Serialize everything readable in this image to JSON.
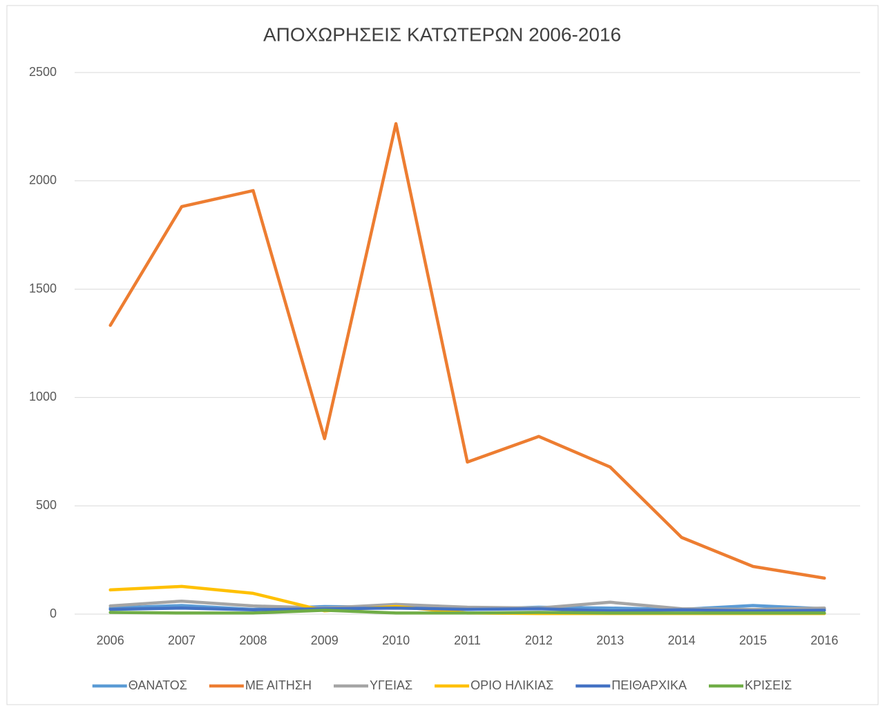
{
  "chart_data": {
    "type": "line",
    "title": "ΑΠΟΧΩΡΗΣΕΙΣ ΚΑΤΩΤΕΡΩΝ 2006-2016",
    "categories": [
      "2006",
      "2007",
      "2008",
      "2009",
      "2010",
      "2011",
      "2012",
      "2013",
      "2014",
      "2015",
      "2016"
    ],
    "series": [
      {
        "name": "ΘΑΝΑΤΟΣ",
        "color": "#5b9bd5",
        "values": [
          28,
          40,
          22,
          35,
          32,
          22,
          32,
          28,
          22,
          40,
          25
        ]
      },
      {
        "name": "ΜΕ ΑΙΤΗΣΗ",
        "color": "#ed7d31",
        "values": [
          1333,
          1881,
          1955,
          810,
          2264,
          702,
          820,
          679,
          354,
          220,
          166
        ]
      },
      {
        "name": "ΥΓΕΙΑΣ",
        "color": "#a5a5a5",
        "values": [
          38,
          60,
          38,
          28,
          45,
          32,
          28,
          55,
          25,
          22,
          28
        ]
      },
      {
        "name": "ΟΡΙΟ ΗΛΙΚΙΑΣ",
        "color": "#ffc000",
        "values": [
          112,
          128,
          96,
          15,
          35,
          5,
          3,
          3,
          3,
          3,
          3
        ]
      },
      {
        "name": "ΠΕΙΘΑΡΧΙΚΑ",
        "color": "#4472c4",
        "values": [
          22,
          28,
          20,
          25,
          28,
          22,
          25,
          15,
          20,
          15,
          18
        ]
      },
      {
        "name": "ΚΡΙΣΕΙΣ",
        "color": "#70ad47",
        "values": [
          8,
          5,
          5,
          18,
          5,
          5,
          8,
          5,
          5,
          5,
          5
        ]
      }
    ],
    "ylim": [
      0,
      2500
    ],
    "yticks": [
      0,
      500,
      1000,
      1500,
      2000,
      2500
    ],
    "grid": true,
    "legend": "bottom"
  }
}
